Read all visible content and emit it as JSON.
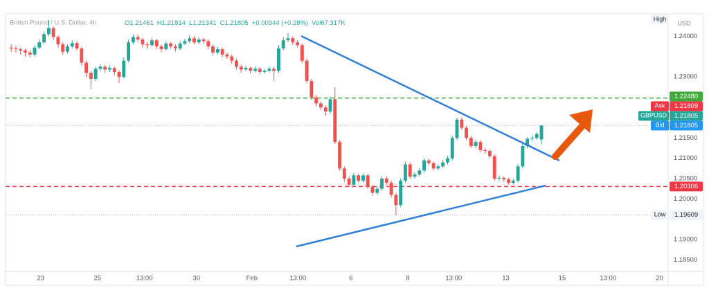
{
  "chart_data": {
    "type": "candlestick",
    "title": "British Pound / U.S. Dollar, 4h",
    "ohlc_legend": [
      "O1.21461",
      "H1.21814",
      "L1.21341",
      "C1.21805",
      "+0.00344 (+0.28%)",
      "Vol67.317K"
    ],
    "currency": "USD",
    "high_label": "High",
    "up_color": "#26a69a",
    "down_color": "#ef5350",
    "ylim": [
      1.1822,
      1.2455
    ],
    "yticks": [
      {
        "value": 1.24,
        "label": "1.24000"
      },
      {
        "value": 1.23,
        "label": "1.23000"
      },
      {
        "value": 1.215,
        "label": "1.21500"
      },
      {
        "value": 1.21,
        "label": "1.21000"
      },
      {
        "value": 1.205,
        "label": "1.20500"
      },
      {
        "value": 1.2,
        "label": "1.20000"
      },
      {
        "value": 1.19,
        "label": "1.19000"
      },
      {
        "value": 1.185,
        "label": "1.18500"
      }
    ],
    "xlim": [
      -1.2,
      140
    ],
    "xticks": [
      {
        "value": 6.3,
        "label": "23"
      },
      {
        "value": 18.4,
        "label": "25"
      },
      {
        "value": 28.4,
        "label": "13:00"
      },
      {
        "value": 39.5,
        "label": "30"
      },
      {
        "value": 51.3,
        "label": "Feb"
      },
      {
        "value": 61.1,
        "label": "13:00"
      },
      {
        "value": 72.4,
        "label": "6"
      },
      {
        "value": 84.5,
        "label": "8"
      },
      {
        "value": 94.3,
        "label": "13:00"
      },
      {
        "value": 105.4,
        "label": "13"
      },
      {
        "value": 117.4,
        "label": "15"
      },
      {
        "value": 127.2,
        "label": "13:00"
      },
      {
        "value": 138.2,
        "label": "20"
      }
    ],
    "levels": [
      {
        "value": 1.2248,
        "label": "1.22480",
        "color": "#3faa3a",
        "line": "dashed"
      },
      {
        "name": "Ask",
        "value": 1.21809,
        "label": "1.21809",
        "color": "#f23645"
      },
      {
        "name": "Bid",
        "value": 1.21805,
        "label": "1.21805",
        "color": "#2196f3"
      },
      {
        "name": "GBPUSD",
        "value": 1.21805,
        "label": "1.21805",
        "color": "#26a69a",
        "line": "dotted"
      },
      {
        "value": 1.20306,
        "label": "1.20306",
        "color": "#f23645",
        "line": "dashed"
      },
      {
        "name": "Low",
        "value": 1.19609,
        "label": "1.19609",
        "color": "#f0f3fa",
        "line": "dotted"
      }
    ],
    "candles": [
      [
        1.2372,
        1.238,
        1.2362,
        1.237
      ],
      [
        1.237,
        1.2376,
        1.236,
        1.2368
      ],
      [
        1.2368,
        1.2372,
        1.2355,
        1.2365
      ],
      [
        1.2365,
        1.237,
        1.235,
        1.236
      ],
      [
        1.236,
        1.2366,
        1.2348,
        1.2355
      ],
      [
        1.2355,
        1.2378,
        1.235,
        1.2372
      ],
      [
        1.2372,
        1.2392,
        1.2368,
        1.2385
      ],
      [
        1.2385,
        1.2412,
        1.238,
        1.2405
      ],
      [
        1.2405,
        1.244,
        1.24,
        1.242
      ],
      [
        1.242,
        1.2425,
        1.239,
        1.2398
      ],
      [
        1.2398,
        1.2402,
        1.2372,
        1.238
      ],
      [
        1.238,
        1.2385,
        1.2355,
        1.2362
      ],
      [
        1.2362,
        1.238,
        1.2358,
        1.2375
      ],
      [
        1.2375,
        1.239,
        1.237,
        1.2383
      ],
      [
        1.2383,
        1.2388,
        1.2365,
        1.237
      ],
      [
        1.237,
        1.2374,
        1.2328,
        1.2335
      ],
      [
        1.2335,
        1.234,
        1.23,
        1.231
      ],
      [
        1.231,
        1.2315,
        1.227,
        1.2295
      ],
      [
        1.2295,
        1.2326,
        1.229,
        1.232
      ],
      [
        1.232,
        1.2332,
        1.2314,
        1.2325
      ],
      [
        1.2325,
        1.233,
        1.231,
        1.2318
      ],
      [
        1.2318,
        1.2328,
        1.2312,
        1.2322
      ],
      [
        1.2322,
        1.2326,
        1.2304,
        1.2312
      ],
      [
        1.2312,
        1.2316,
        1.2285,
        1.23
      ],
      [
        1.23,
        1.2348,
        1.2296,
        1.234
      ],
      [
        1.234,
        1.2392,
        1.2336,
        1.2385
      ],
      [
        1.2385,
        1.2405,
        1.238,
        1.2398
      ],
      [
        1.2398,
        1.2404,
        1.2386,
        1.2392
      ],
      [
        1.2392,
        1.2396,
        1.2372,
        1.238
      ],
      [
        1.238,
        1.2386,
        1.237,
        1.2378
      ],
      [
        1.2378,
        1.2396,
        1.2374,
        1.239
      ],
      [
        1.239,
        1.2394,
        1.2368,
        1.2375
      ],
      [
        1.2375,
        1.238,
        1.236,
        1.2368
      ],
      [
        1.2368,
        1.2388,
        1.2364,
        1.2382
      ],
      [
        1.2382,
        1.2386,
        1.237,
        1.2375
      ],
      [
        1.2375,
        1.238,
        1.2362,
        1.237
      ],
      [
        1.237,
        1.2388,
        1.2366,
        1.2382
      ],
      [
        1.2382,
        1.2394,
        1.2378,
        1.2388
      ],
      [
        1.2388,
        1.2402,
        1.2384,
        1.2395
      ],
      [
        1.2395,
        1.24,
        1.238,
        1.2385
      ],
      [
        1.2385,
        1.2398,
        1.238,
        1.2392
      ],
      [
        1.2392,
        1.2396,
        1.2382,
        1.2388
      ],
      [
        1.2388,
        1.2392,
        1.2368,
        1.2375
      ],
      [
        1.2375,
        1.238,
        1.2352,
        1.236
      ],
      [
        1.236,
        1.2374,
        1.2355,
        1.2368
      ],
      [
        1.2368,
        1.2372,
        1.2348,
        1.2355
      ],
      [
        1.2355,
        1.236,
        1.2344,
        1.235
      ],
      [
        1.235,
        1.2355,
        1.2332,
        1.234
      ],
      [
        1.234,
        1.2345,
        1.2318,
        1.2325
      ],
      [
        1.2325,
        1.233,
        1.231,
        1.2318
      ],
      [
        1.2318,
        1.2328,
        1.2314,
        1.2322
      ],
      [
        1.2322,
        1.2326,
        1.2308,
        1.2315
      ],
      [
        1.2315,
        1.2326,
        1.2311,
        1.232
      ],
      [
        1.232,
        1.2324,
        1.2306,
        1.2312
      ],
      [
        1.2312,
        1.232,
        1.2308,
        1.2315
      ],
      [
        1.2315,
        1.2326,
        1.2311,
        1.232
      ],
      [
        1.232,
        1.2325,
        1.229,
        1.2315
      ],
      [
        1.2315,
        1.2378,
        1.231,
        1.237
      ],
      [
        1.237,
        1.2398,
        1.2365,
        1.239
      ],
      [
        1.239,
        1.2408,
        1.2386,
        1.2395
      ],
      [
        1.2395,
        1.24,
        1.2378,
        1.2385
      ],
      [
        1.2385,
        1.239,
        1.2372,
        1.2378
      ],
      [
        1.2378,
        1.2382,
        1.2334,
        1.234
      ],
      [
        1.234,
        1.2345,
        1.2284,
        1.229
      ],
      [
        1.229,
        1.2295,
        1.2244,
        1.225
      ],
      [
        1.225,
        1.2256,
        1.2228,
        1.2235
      ],
      [
        1.2235,
        1.224,
        1.2218,
        1.2225
      ],
      [
        1.2225,
        1.223,
        1.2205,
        1.2215
      ],
      [
        1.2215,
        1.2252,
        1.221,
        1.2245
      ],
      [
        1.2245,
        1.2275,
        1.2135,
        1.214
      ],
      [
        1.214,
        1.2145,
        1.207,
        1.2075
      ],
      [
        1.2075,
        1.208,
        1.2042,
        1.205
      ],
      [
        1.205,
        1.2055,
        1.203,
        1.2035
      ],
      [
        1.2035,
        1.2064,
        1.203,
        1.2058
      ],
      [
        1.2058,
        1.2062,
        1.204,
        1.2045
      ],
      [
        1.2045,
        1.2064,
        1.204,
        1.2058
      ],
      [
        1.2058,
        1.2062,
        1.2025,
        1.203
      ],
      [
        1.203,
        1.2035,
        1.2008,
        1.2015
      ],
      [
        1.2015,
        1.203,
        1.201,
        1.2025
      ],
      [
        1.2025,
        1.2056,
        1.202,
        1.205
      ],
      [
        1.205,
        1.2055,
        1.2035,
        1.204
      ],
      [
        1.204,
        1.2045,
        1.2004,
        1.201
      ],
      [
        1.201,
        1.2015,
        1.196,
        1.1985
      ],
      [
        1.1985,
        1.205,
        1.198,
        1.2045
      ],
      [
        1.2045,
        1.2092,
        1.204,
        1.2085
      ],
      [
        1.2085,
        1.209,
        1.205,
        1.2055
      ],
      [
        1.2055,
        1.2066,
        1.205,
        1.206
      ],
      [
        1.206,
        1.2076,
        1.2055,
        1.207
      ],
      [
        1.207,
        1.21,
        1.2065,
        1.2095
      ],
      [
        1.2095,
        1.21,
        1.2082,
        1.2088
      ],
      [
        1.2088,
        1.2092,
        1.207,
        1.2075
      ],
      [
        1.2075,
        1.2086,
        1.207,
        1.208
      ],
      [
        1.208,
        1.2096,
        1.2075,
        1.209
      ],
      [
        1.209,
        1.2106,
        1.2085,
        1.21
      ],
      [
        1.21,
        1.2156,
        1.2095,
        1.215
      ],
      [
        1.215,
        1.22,
        1.2145,
        1.2195
      ],
      [
        1.2195,
        1.22,
        1.217,
        1.2175
      ],
      [
        1.2175,
        1.218,
        1.2145,
        1.215
      ],
      [
        1.215,
        1.2155,
        1.2125,
        1.213
      ],
      [
        1.213,
        1.2146,
        1.2125,
        1.214
      ],
      [
        1.214,
        1.2145,
        1.2115,
        1.212
      ],
      [
        1.212,
        1.2125,
        1.2112,
        1.2118
      ],
      [
        1.2118,
        1.2122,
        1.21,
        1.2105
      ],
      [
        1.2105,
        1.211,
        1.2045,
        1.205
      ],
      [
        1.205,
        1.2058,
        1.2045,
        1.2052
      ],
      [
        1.2052,
        1.2056,
        1.2042,
        1.2048
      ],
      [
        1.2048,
        1.2052,
        1.2035,
        1.204
      ],
      [
        1.204,
        1.205,
        1.2036,
        1.2045
      ],
      [
        1.2045,
        1.2086,
        1.204,
        1.208
      ],
      [
        1.208,
        1.2136,
        1.2075,
        1.213
      ],
      [
        1.213,
        1.2152,
        1.2125,
        1.2148
      ],
      [
        1.2148,
        1.2156,
        1.2142,
        1.215
      ],
      [
        1.215,
        1.2164,
        1.2145,
        1.216
      ],
      [
        1.21461,
        1.21814,
        1.21341,
        1.21805
      ]
    ]
  }
}
